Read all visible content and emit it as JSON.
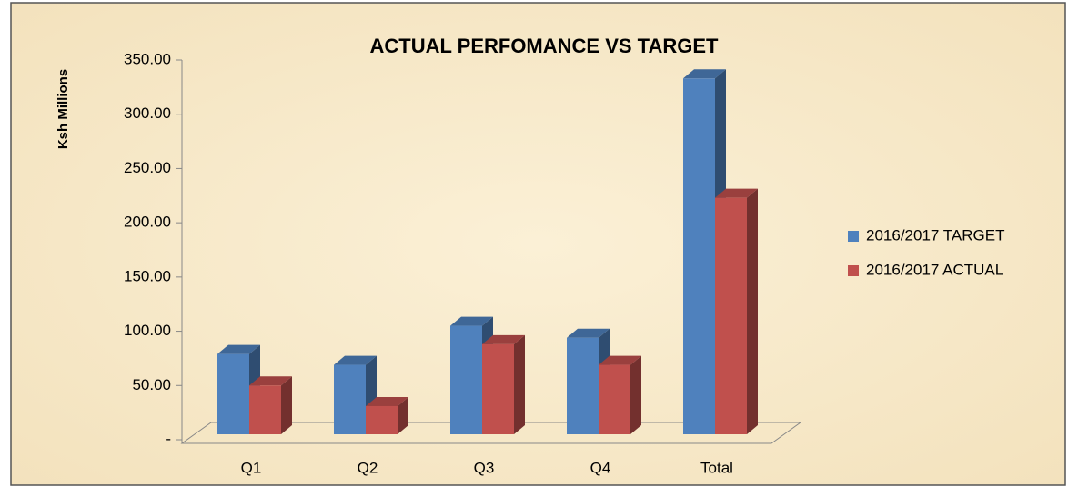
{
  "chart_data": {
    "type": "bar3d",
    "title": "ACTUAL PERFOMANCE VS TARGET",
    "y_label": "Ksh Millions",
    "categories": [
      "Q1",
      "Q2",
      "Q3",
      "Q4",
      "Total"
    ],
    "series": [
      {
        "name": "2016/2017 TARGET",
        "color": "#4f81bd",
        "values": [
          74,
          64,
          100,
          89,
          328
        ]
      },
      {
        "name": "2016/2017 ACTUAL",
        "color": "#c0504d",
        "values": [
          45,
          26,
          83,
          64,
          218
        ]
      }
    ],
    "ylim": [
      0,
      350
    ],
    "yticks": [
      {
        "value": 0,
        "label": "-"
      },
      {
        "value": 50,
        "label": "50.00"
      },
      {
        "value": 100,
        "label": "100.00"
      },
      {
        "value": 150,
        "label": "150.00"
      },
      {
        "value": 200,
        "label": "200.00"
      },
      {
        "value": 250,
        "label": "250.00"
      },
      {
        "value": 300,
        "label": "300.00"
      },
      {
        "value": 350,
        "label": "350.00"
      }
    ],
    "legend": "right"
  }
}
